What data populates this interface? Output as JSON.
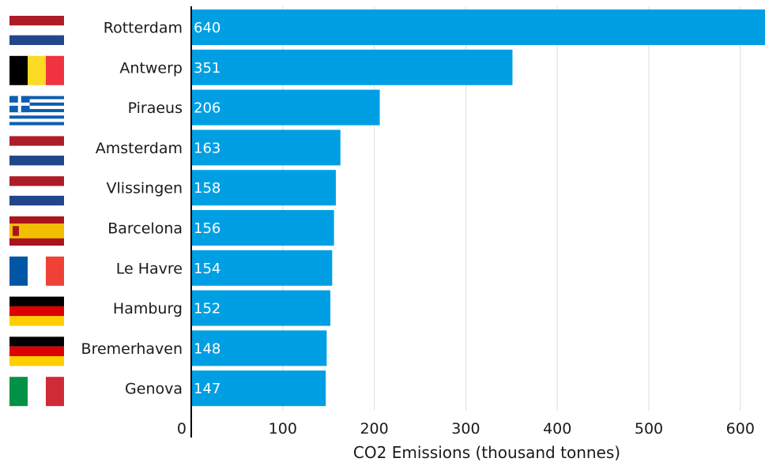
{
  "chart_data": {
    "type": "bar",
    "orientation": "horizontal",
    "categories": [
      "Rotterdam",
      "Antwerp",
      "Piraeus",
      "Amsterdam",
      "Vlissingen",
      "Barcelona",
      "Le Havre",
      "Hamburg",
      "Bremerhaven",
      "Genova"
    ],
    "values": [
      640,
      351,
      206,
      163,
      158,
      156,
      154,
      152,
      148,
      147
    ],
    "value_labels": [
      "640",
      "351",
      "206",
      "163",
      "158",
      "156",
      "154",
      "152",
      "148",
      "147"
    ],
    "xlabel": "CO2 Emissions (thousand tonnes)",
    "ylabel": "",
    "xlim": [
      0,
      630
    ],
    "x_ticks": [
      0,
      100,
      200,
      300,
      400,
      500,
      600
    ],
    "x_tick_labels": [
      "0",
      "100",
      "200",
      "300",
      "400",
      "500",
      "600"
    ],
    "grid": "vertical",
    "bar_color": "#009FE3",
    "flags": [
      "netherlands",
      "belgium",
      "greece",
      "netherlands",
      "netherlands",
      "spain",
      "france",
      "germany",
      "germany",
      "italy"
    ]
  }
}
